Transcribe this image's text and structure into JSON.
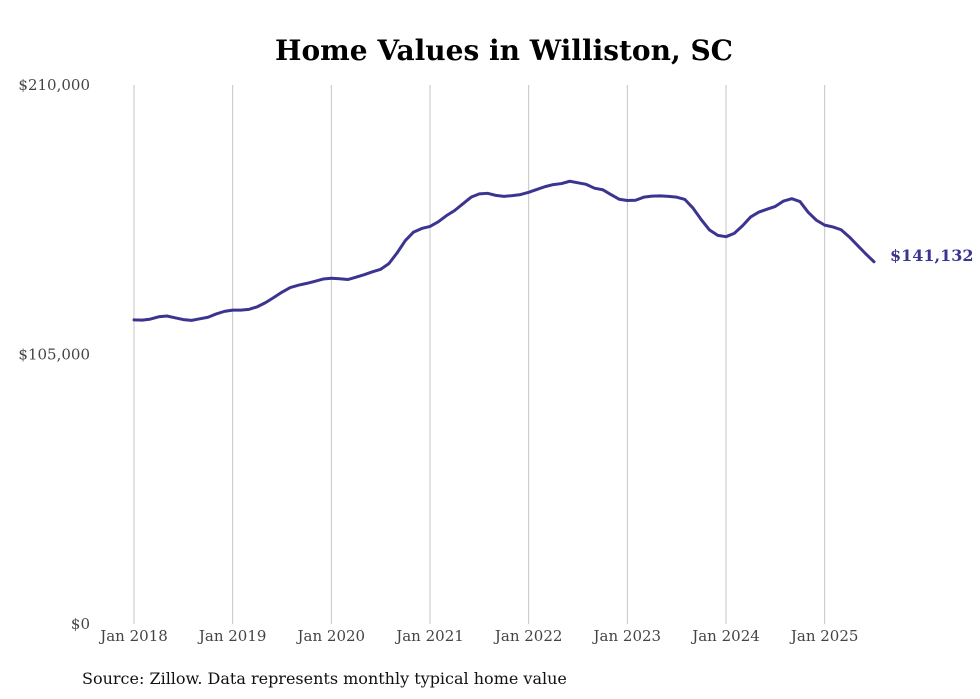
{
  "chart_data": {
    "type": "line",
    "title": "Home Values in Williston, SC",
    "xlabel": "",
    "ylabel": "",
    "ylim": [
      0,
      210000
    ],
    "xlim": [
      "2018-01",
      "2025-07"
    ],
    "y_ticks": [
      {
        "value": 0,
        "label": "$0"
      },
      {
        "value": 105000,
        "label": "$105,000"
      },
      {
        "value": 210000,
        "label": "$210,000"
      }
    ],
    "x_ticks": [
      {
        "value": "2018-01",
        "label": "Jan 2018"
      },
      {
        "value": "2019-01",
        "label": "Jan 2019"
      },
      {
        "value": "2020-01",
        "label": "Jan 2020"
      },
      {
        "value": "2021-01",
        "label": "Jan 2021"
      },
      {
        "value": "2022-01",
        "label": "Jan 2022"
      },
      {
        "value": "2023-01",
        "label": "Jan 2023"
      },
      {
        "value": "2024-01",
        "label": "Jan 2024"
      },
      {
        "value": "2025-01",
        "label": "Jan 2025"
      }
    ],
    "grid": {
      "vertical": true,
      "horizontal": false
    },
    "line_color": "#3b3591",
    "series": [
      {
        "x": [
          "2018-01",
          "2018-02",
          "2018-03",
          "2018-04",
          "2018-05",
          "2018-06",
          "2018-07",
          "2018-08",
          "2018-09",
          "2018-10",
          "2018-11",
          "2018-12",
          "2019-01",
          "2019-02",
          "2019-03",
          "2019-04",
          "2019-05",
          "2019-06",
          "2019-07",
          "2019-08",
          "2019-09",
          "2019-10",
          "2019-11",
          "2019-12",
          "2020-01",
          "2020-02",
          "2020-03",
          "2020-04",
          "2020-05",
          "2020-06",
          "2020-07",
          "2020-08",
          "2020-09",
          "2020-10",
          "2020-11",
          "2020-12",
          "2021-01",
          "2021-02",
          "2021-03",
          "2021-04",
          "2021-05",
          "2021-06",
          "2021-07",
          "2021-08",
          "2021-09",
          "2021-10",
          "2021-11",
          "2021-12",
          "2022-01",
          "2022-02",
          "2022-03",
          "2022-04",
          "2022-05",
          "2022-06",
          "2022-07",
          "2022-08",
          "2022-09",
          "2022-10",
          "2022-11",
          "2022-12",
          "2023-01",
          "2023-02",
          "2023-03",
          "2023-04",
          "2023-05",
          "2023-06",
          "2023-07",
          "2023-08",
          "2023-09",
          "2023-10",
          "2023-11",
          "2023-12",
          "2024-01",
          "2024-02",
          "2024-03",
          "2024-04",
          "2024-05",
          "2024-06",
          "2024-07",
          "2024-08",
          "2024-09",
          "2024-10",
          "2024-11",
          "2024-12",
          "2025-01",
          "2025-02",
          "2025-03",
          "2025-04",
          "2025-05",
          "2025-06",
          "2025-07"
        ],
        "values": [
          118500,
          118400,
          118800,
          119700,
          120000,
          119300,
          118600,
          118300,
          118900,
          119500,
          120800,
          121800,
          122300,
          122300,
          122600,
          123600,
          125200,
          127200,
          129300,
          131100,
          132000,
          132700,
          133500,
          134400,
          134700,
          134500,
          134200,
          135100,
          136100,
          137200,
          138200,
          140400,
          144600,
          149400,
          152700,
          154100,
          154900,
          156700,
          159100,
          161100,
          163700,
          166300,
          167600,
          167800,
          167000,
          166600,
          166900,
          167300,
          168200,
          169300,
          170400,
          171200,
          171600,
          172500,
          171900,
          171300,
          169800,
          169200,
          167300,
          165500,
          165000,
          165100,
          166300,
          166700,
          166800,
          166600,
          166300,
          165400,
          162000,
          157500,
          153500,
          151400,
          150900,
          152200,
          155100,
          158600,
          160500,
          161600,
          162700,
          164800,
          165700,
          164600,
          160400,
          157300,
          155400,
          154700,
          153600,
          150800,
          147500,
          144200,
          141132
        ]
      }
    ],
    "end_label": "$141,132",
    "source": "Source: Zillow. Data represents monthly typical home value"
  }
}
